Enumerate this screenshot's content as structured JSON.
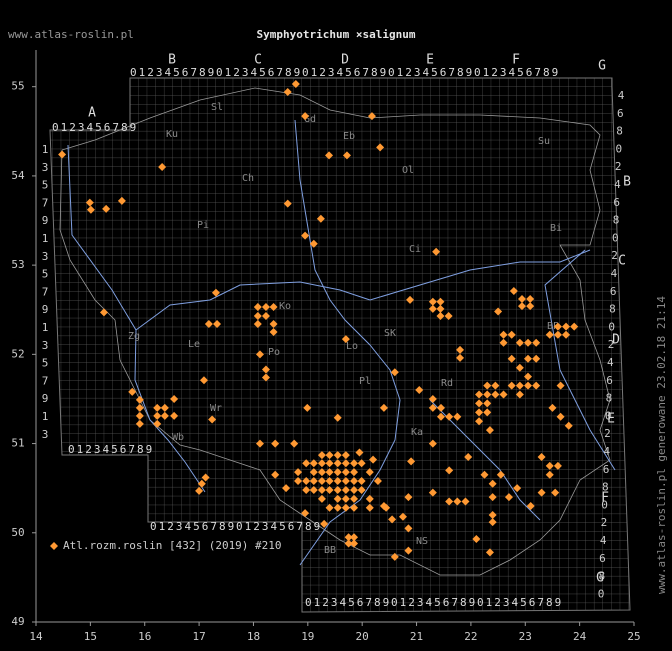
{
  "site": "www.atlas-roslin.pl",
  "footer": "www.atlas-roslin.pl generowane 23.02.18 21:14",
  "grid_digits": "0123456789",
  "row_digits_odd": [
    "1",
    "3",
    "5",
    "7",
    "9"
  ],
  "row_digits_even": [
    "0",
    "2",
    "4",
    "6",
    "8"
  ],
  "square_letters": [
    "A",
    "B",
    "C",
    "D",
    "E",
    "F",
    "G"
  ],
  "row_letters": [
    "B",
    "C",
    "D",
    "E",
    "F",
    "G"
  ],
  "region_labels": [
    "Ku",
    "Sl",
    "Gd",
    "Eb",
    "Ol",
    "Su",
    "Ch",
    "Pi",
    "Ci",
    "Bi",
    "Ko",
    "Le",
    "Po",
    "Lo",
    "SK",
    "BP",
    "Rd",
    "Ka",
    "Wb",
    "Wr",
    "Zg",
    "NS",
    "BB",
    "Pl"
  ],
  "chart_data": {
    "type": "scatter",
    "title": "Symphyotrichum ×salignum",
    "xlim": [
      14,
      25
    ],
    "ylim": [
      49,
      55.4
    ],
    "xticks": [
      14,
      15,
      16,
      17,
      18,
      19,
      20,
      21,
      22,
      23,
      24,
      25
    ],
    "yticks": [
      49,
      50,
      51,
      52,
      53,
      54,
      55
    ],
    "legend": "lower left",
    "series": [
      {
        "name": "Atl.rozm.roslin [432] (2019) #210",
        "color": "#ff9933",
        "x": [
          14.48,
          16.32,
          14.99,
          15.01,
          15.29,
          15.58,
          18.78,
          18.63,
          18.95,
          20.18,
          19.39,
          19.72,
          20.33,
          18.63,
          19.24,
          18.95,
          19.11,
          21.36,
          17.31,
          15.25,
          17.18,
          17.33,
          18.08,
          18.23,
          18.37,
          18.08,
          18.23,
          18.08,
          18.37,
          18.37,
          18.12,
          18.23,
          18.23,
          19.7,
          17.09,
          15.77,
          15.91,
          15.91,
          15.91,
          15.91,
          16.23,
          16.37,
          16.23,
          16.37,
          16.23,
          16.54,
          16.54,
          17.24,
          18.99,
          19.55,
          20.88,
          21.3,
          21.44,
          21.3,
          21.44,
          21.59,
          21.44,
          22.5,
          22.79,
          22.94,
          23.09,
          22.94,
          23.09,
          22.6,
          22.75,
          22.9,
          23.05,
          23.2,
          22.6,
          23.6,
          23.75,
          23.9,
          23.6,
          23.75,
          23.45,
          21.8,
          21.8,
          20.6,
          21.05,
          20.4,
          21.3,
          21.45,
          21.3,
          21.45,
          21.6,
          21.3,
          21.75,
          22.3,
          22.45,
          22.45,
          22.3,
          22.15,
          22.15,
          22.3,
          22.15,
          22.3,
          22.15,
          22.6,
          22.75,
          22.9,
          22.9,
          23.05,
          23.05,
          23.2,
          22.9,
          22.75,
          23.05,
          23.2,
          23.65,
          23.5,
          23.65,
          23.8,
          22.35,
          21.95,
          20.9,
          21.6,
          23.3,
          23.45,
          23.6,
          23.45,
          22.85,
          22.55,
          22.25,
          22.4,
          22.4,
          22.7,
          23.1,
          23.3,
          23.55,
          22.4,
          22.4,
          21.9,
          21.75,
          21.6,
          21.3,
          20.85,
          20.4,
          20.55,
          20.75,
          20.85,
          22.1,
          22.35,
          20.6,
          20.85,
          19.75,
          19.85,
          19.75,
          19.85,
          19.3,
          18.95,
          18.12,
          18.4,
          18.75,
          19.95,
          20.2,
          18.4,
          18.6,
          17.05,
          17.0,
          17.12,
          19.26,
          19.4,
          19.55,
          19.7,
          18.97,
          19.11,
          19.26,
          19.4,
          19.55,
          19.7,
          19.85,
          19.99,
          18.82,
          19.11,
          19.26,
          19.4,
          19.55,
          19.7,
          19.85,
          20.14,
          18.82,
          18.97,
          19.11,
          19.26,
          19.4,
          19.55,
          19.7,
          19.85,
          19.99,
          20.29,
          18.97,
          19.11,
          19.26,
          19.4,
          19.55,
          19.7,
          19.85,
          19.99,
          19.26,
          19.55,
          19.7,
          19.85,
          20.14,
          19.4,
          19.55,
          19.7,
          19.85,
          20.14,
          20.44
        ],
        "values": [
          54.24,
          54.1,
          53.7,
          53.62,
          53.63,
          53.72,
          55.03,
          54.94,
          54.67,
          54.67,
          54.23,
          54.23,
          54.32,
          53.69,
          53.52,
          53.33,
          53.24,
          53.15,
          52.69,
          52.47,
          52.34,
          52.34,
          52.53,
          52.53,
          52.53,
          52.43,
          52.43,
          52.34,
          52.34,
          52.25,
          52.0,
          51.83,
          51.74,
          52.17,
          51.71,
          51.58,
          51.49,
          51.4,
          51.31,
          51.22,
          51.4,
          51.4,
          51.31,
          51.31,
          51.22,
          51.5,
          51.31,
          51.27,
          51.4,
          51.29,
          52.61,
          52.59,
          52.59,
          52.51,
          52.51,
          52.43,
          52.43,
          52.48,
          52.71,
          52.62,
          52.62,
          52.54,
          52.54,
          52.22,
          52.22,
          52.13,
          52.13,
          52.13,
          52.13,
          52.31,
          52.31,
          52.31,
          52.22,
          52.22,
          52.22,
          52.05,
          51.96,
          51.8,
          51.6,
          51.4,
          51.5,
          51.4,
          51.4,
          51.3,
          51.3,
          51.0,
          51.3,
          51.65,
          51.65,
          51.55,
          51.55,
          51.55,
          51.45,
          51.45,
          51.35,
          51.35,
          51.25,
          51.55,
          51.65,
          51.55,
          51.65,
          51.75,
          51.65,
          51.65,
          51.85,
          51.95,
          51.95,
          51.95,
          51.65,
          51.4,
          51.3,
          51.2,
          51.15,
          50.85,
          50.8,
          50.7,
          50.85,
          50.75,
          50.75,
          50.65,
          50.5,
          50.65,
          50.65,
          50.55,
          50.4,
          50.4,
          50.3,
          50.45,
          50.45,
          50.2,
          50.12,
          50.35,
          50.35,
          50.35,
          50.45,
          50.4,
          50.3,
          50.15,
          50.18,
          50.05,
          49.93,
          49.78,
          49.73,
          49.8,
          49.95,
          49.95,
          49.88,
          49.88,
          50.1,
          50.22,
          51.0,
          51.0,
          51.0,
          50.9,
          50.82,
          50.65,
          50.5,
          50.55,
          50.47,
          50.62,
          50.87,
          50.87,
          50.87,
          50.87,
          50.78,
          50.78,
          50.78,
          50.78,
          50.78,
          50.78,
          50.78,
          50.78,
          50.68,
          50.68,
          50.68,
          50.68,
          50.68,
          50.68,
          50.68,
          50.68,
          50.58,
          50.58,
          50.58,
          50.58,
          50.58,
          50.58,
          50.58,
          50.58,
          50.58,
          50.58,
          50.48,
          50.48,
          50.48,
          50.48,
          50.48,
          50.48,
          50.48,
          50.48,
          50.38,
          50.38,
          50.38,
          50.38,
          50.38,
          50.28,
          50.28,
          50.28,
          50.28,
          50.28,
          50.28
        ]
      }
    ]
  }
}
